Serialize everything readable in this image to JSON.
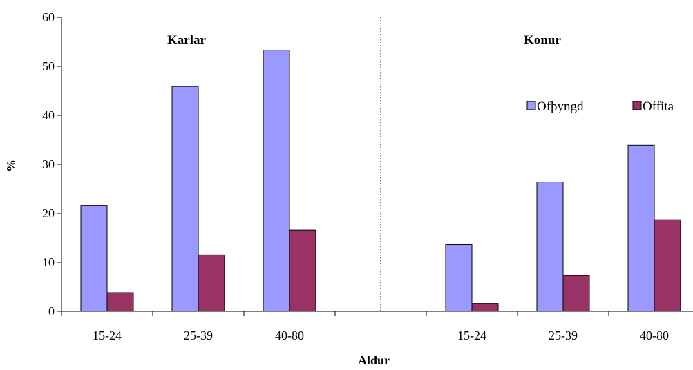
{
  "chart_data": {
    "type": "bar",
    "xlabel": "Aldur",
    "ylabel": "%",
    "ylim": [
      0,
      60
    ],
    "yticks": [
      0,
      10,
      20,
      30,
      40,
      50,
      60
    ],
    "grid": false,
    "legend_position": "right",
    "colors": {
      "Ofþyngd": "#9999ff",
      "Offita": "#993366"
    },
    "groups": [
      {
        "label": "Karlar",
        "categories": [
          "15-24",
          "25-39",
          "40-80"
        ],
        "series": [
          {
            "name": "Ofþyngd",
            "values": [
              21.6,
              45.9,
              53.3
            ]
          },
          {
            "name": "Offita",
            "values": [
              3.8,
              11.5,
              16.6
            ]
          }
        ]
      },
      {
        "label": "Konur",
        "categories": [
          "15-24",
          "25-39",
          "40-80"
        ],
        "series": [
          {
            "name": "Ofþyngd",
            "values": [
              13.6,
              26.4,
              33.9
            ]
          },
          {
            "name": "Offita",
            "values": [
              1.6,
              7.3,
              18.7
            ]
          }
        ]
      }
    ]
  }
}
